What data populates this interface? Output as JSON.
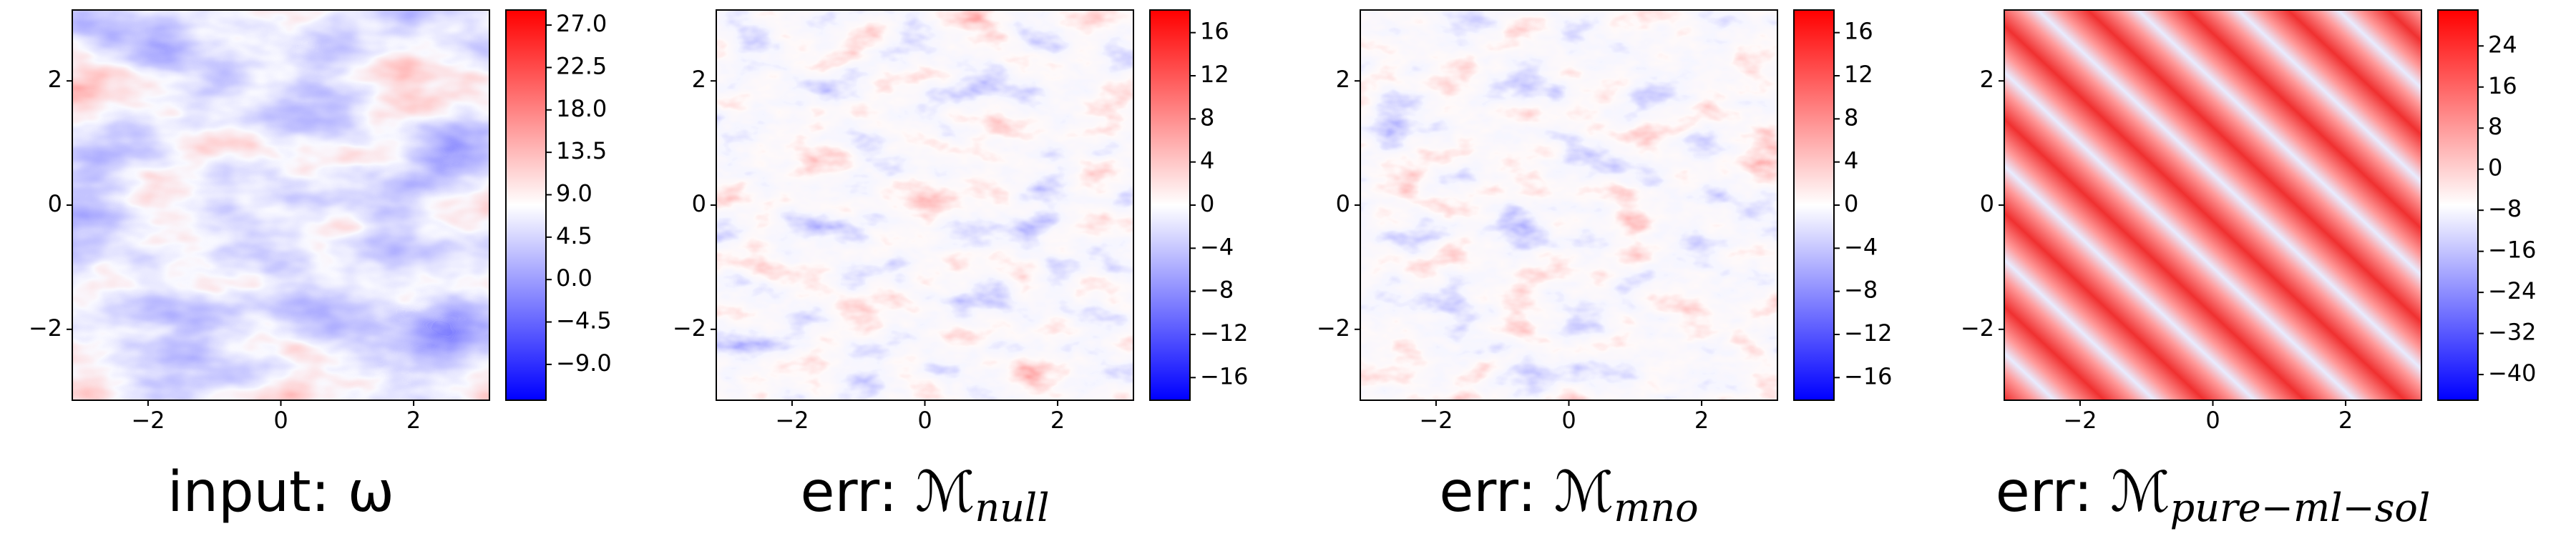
{
  "chart_data": [
    {
      "type": "heatmap",
      "title": "input: ω",
      "xlim": [
        -3.14159,
        3.14159
      ],
      "ylim": [
        -3.14159,
        3.14159
      ],
      "xticks": [
        {
          "value": -2,
          "label": "−2"
        },
        0,
        2
      ],
      "yticks": [
        {
          "value": -2,
          "label": "−2"
        },
        0,
        2
      ],
      "colorbar": {
        "lim": [
          -12.8,
          28.6
        ],
        "ticks": [
          {
            "value": 27,
            "label": "27.0"
          },
          {
            "value": 22.5,
            "label": "22.5"
          },
          {
            "value": 18,
            "label": "18.0"
          },
          {
            "value": 13.5,
            "label": "13.5"
          },
          {
            "value": 9,
            "label": "9.0"
          },
          {
            "value": 4.5,
            "label": "4.5"
          },
          {
            "value": 0,
            "label": "0.0"
          },
          {
            "value": -4.5,
            "label": "−4.5"
          },
          {
            "value": -9,
            "label": "−9.0"
          }
        ]
      }
    },
    {
      "type": "heatmap",
      "title": "err: ℳ",
      "title_subscript": "null",
      "xlim": [
        -3.14159,
        3.14159
      ],
      "ylim": [
        -3.14159,
        3.14159
      ],
      "xticks": [
        {
          "value": -2,
          "label": "−2"
        },
        0,
        2
      ],
      "yticks": [
        {
          "value": -2,
          "label": "−2"
        },
        0,
        2
      ],
      "colorbar": {
        "lim": [
          -18.1,
          18.1
        ],
        "ticks": [
          16,
          12,
          8,
          4,
          0,
          {
            "value": -4,
            "label": "−4"
          },
          {
            "value": -8,
            "label": "−8"
          },
          {
            "value": -12,
            "label": "−12"
          },
          {
            "value": -16,
            "label": "−16"
          }
        ]
      }
    },
    {
      "type": "heatmap",
      "title": "err: ℳ",
      "title_subscript": "mno",
      "xlim": [
        -3.14159,
        3.14159
      ],
      "ylim": [
        -3.14159,
        3.14159
      ],
      "xticks": [
        {
          "value": -2,
          "label": "−2"
        },
        0,
        2
      ],
      "yticks": [
        {
          "value": -2,
          "label": "−2"
        },
        0,
        2
      ],
      "colorbar": {
        "lim": [
          -18.1,
          18.1
        ],
        "ticks": [
          16,
          12,
          8,
          4,
          0,
          {
            "value": -4,
            "label": "−4"
          },
          {
            "value": -8,
            "label": "−8"
          },
          {
            "value": -12,
            "label": "−12"
          },
          {
            "value": -16,
            "label": "−16"
          }
        ]
      }
    },
    {
      "type": "heatmap",
      "title": "err: ℳ",
      "title_subscript": "pure−ml−sol",
      "xlim": [
        -3.14159,
        3.14159
      ],
      "ylim": [
        -3.14159,
        3.14159
      ],
      "xticks": [
        {
          "value": -2,
          "label": "−2"
        },
        0,
        2
      ],
      "yticks": [
        {
          "value": -2,
          "label": "−2"
        },
        0,
        2
      ],
      "colorbar": {
        "lim": [
          -45,
          31
        ],
        "ticks": [
          24,
          16,
          8,
          0,
          {
            "value": -8,
            "label": "−8"
          },
          {
            "value": -16,
            "label": "−16"
          },
          {
            "value": -24,
            "label": "−24"
          },
          {
            "value": -32,
            "label": "−32"
          },
          {
            "value": -40,
            "label": "−40"
          }
        ]
      }
    }
  ]
}
